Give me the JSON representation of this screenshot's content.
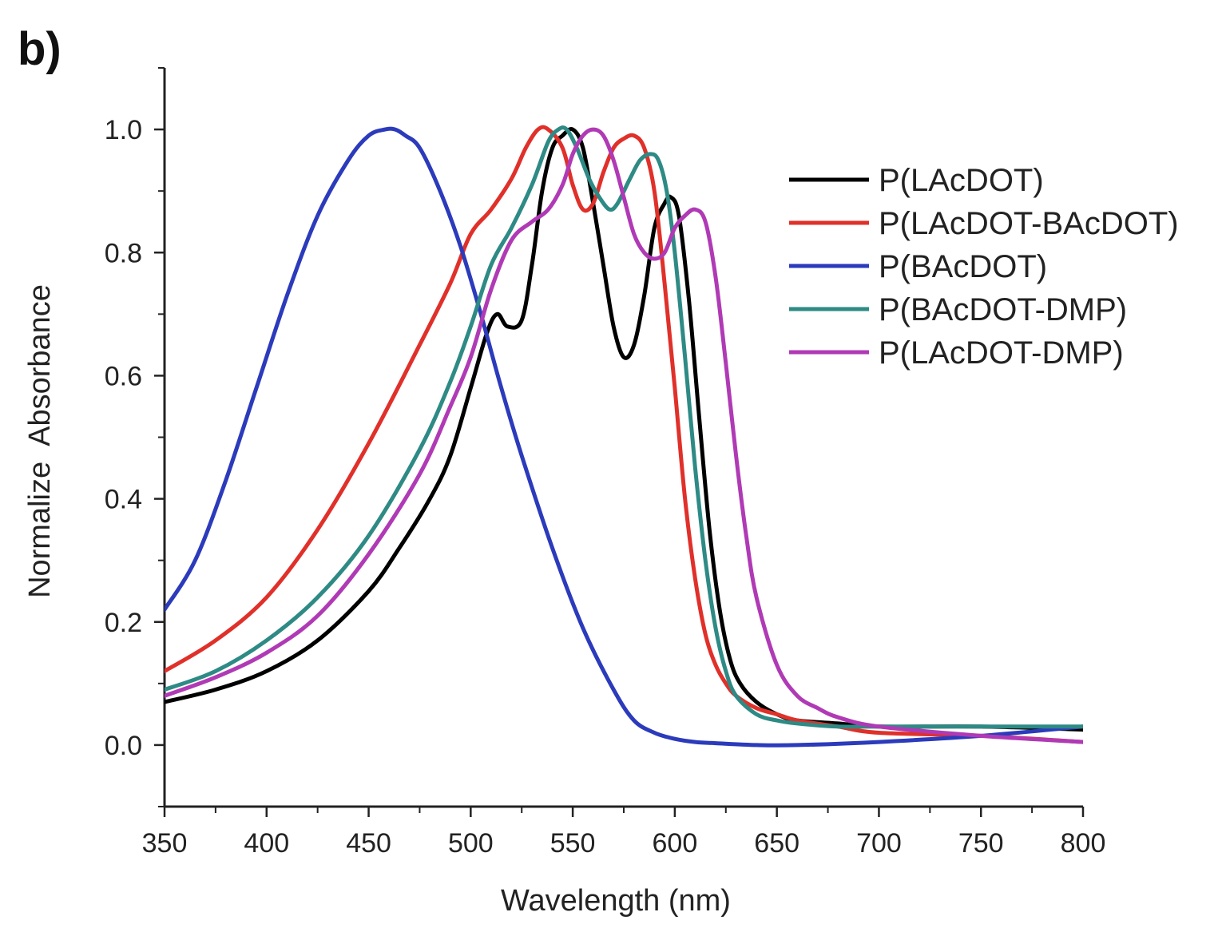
{
  "panel_label": "b)",
  "chart_data": {
    "type": "line",
    "title": "",
    "xlabel": "Wavelength (nm)",
    "ylabel": "Normalize  Absorbance",
    "xlim": [
      350,
      800
    ],
    "ylim": [
      -0.1,
      1.1
    ],
    "xticks": [
      350,
      400,
      450,
      500,
      550,
      600,
      650,
      700,
      750,
      800
    ],
    "yticks": [
      0.0,
      0.2,
      0.4,
      0.6,
      0.8,
      1.0
    ],
    "ytick_labels": [
      "0.0",
      "0.2",
      "0.4",
      "0.6",
      "0.8",
      "1.0"
    ],
    "grid": false,
    "legend_position": "top-right",
    "series": [
      {
        "name": "P(LAcDOT)",
        "color": "#000000",
        "x": [
          350,
          375,
          400,
          425,
          450,
          465,
          480,
          490,
          500,
          508,
          513,
          518,
          525,
          530,
          535,
          540,
          545,
          550,
          555,
          560,
          565,
          570,
          575,
          580,
          585,
          590,
          595,
          598,
          602,
          607,
          612,
          617,
          622,
          627,
          632,
          640,
          650,
          660,
          680,
          700,
          750,
          800
        ],
        "y": [
          0.07,
          0.09,
          0.12,
          0.17,
          0.25,
          0.32,
          0.4,
          0.47,
          0.58,
          0.67,
          0.7,
          0.68,
          0.69,
          0.78,
          0.9,
          0.97,
          0.99,
          1.0,
          0.97,
          0.88,
          0.78,
          0.68,
          0.63,
          0.65,
          0.73,
          0.84,
          0.88,
          0.89,
          0.86,
          0.72,
          0.53,
          0.35,
          0.22,
          0.14,
          0.1,
          0.07,
          0.05,
          0.04,
          0.035,
          0.03,
          0.03,
          0.025
        ]
      },
      {
        "name": "P(LAcDOT-BAcDOT)",
        "color": "#e0302a",
        "x": [
          350,
          375,
          400,
          425,
          450,
          475,
          490,
          500,
          510,
          520,
          527,
          533,
          538,
          545,
          550,
          555,
          560,
          565,
          570,
          575,
          580,
          585,
          590,
          595,
          600,
          605,
          610,
          615,
          620,
          625,
          630,
          640,
          650,
          660,
          680,
          700,
          750,
          800
        ],
        "y": [
          0.12,
          0.17,
          0.24,
          0.35,
          0.49,
          0.65,
          0.75,
          0.83,
          0.87,
          0.92,
          0.97,
          1.0,
          1.0,
          0.97,
          0.91,
          0.87,
          0.88,
          0.93,
          0.97,
          0.985,
          0.99,
          0.97,
          0.9,
          0.75,
          0.58,
          0.4,
          0.27,
          0.18,
          0.13,
          0.1,
          0.08,
          0.06,
          0.05,
          0.04,
          0.03,
          0.02,
          0.015,
          0.005
        ]
      },
      {
        "name": "P(BAcDOT)",
        "color": "#2b3bbb",
        "x": [
          350,
          365,
          380,
          395,
          410,
          425,
          440,
          450,
          458,
          463,
          468,
          475,
          485,
          495,
          505,
          515,
          525,
          540,
          555,
          570,
          580,
          590,
          600,
          610,
          620,
          640,
          660,
          700,
          750,
          800
        ],
        "y": [
          0.22,
          0.3,
          0.43,
          0.58,
          0.73,
          0.86,
          0.95,
          0.99,
          1.0,
          1.0,
          0.99,
          0.97,
          0.9,
          0.81,
          0.7,
          0.58,
          0.47,
          0.32,
          0.19,
          0.09,
          0.04,
          0.02,
          0.01,
          0.005,
          0.003,
          0.0,
          0.0,
          0.005,
          0.015,
          0.03
        ]
      },
      {
        "name": "P(BAcDOT-DMP)",
        "color": "#2e8a85",
        "x": [
          350,
          375,
          400,
          425,
          450,
          475,
          490,
          500,
          510,
          520,
          530,
          538,
          543,
          547,
          552,
          558,
          563,
          568,
          572,
          578,
          583,
          588,
          592,
          596,
          600,
          605,
          610,
          615,
          620,
          625,
          630,
          640,
          650,
          660,
          680,
          700,
          750,
          800
        ],
        "y": [
          0.09,
          0.12,
          0.17,
          0.24,
          0.34,
          0.48,
          0.59,
          0.68,
          0.78,
          0.84,
          0.91,
          0.98,
          1.0,
          1.0,
          0.97,
          0.92,
          0.89,
          0.87,
          0.88,
          0.92,
          0.95,
          0.96,
          0.95,
          0.9,
          0.8,
          0.63,
          0.45,
          0.3,
          0.19,
          0.12,
          0.08,
          0.05,
          0.04,
          0.035,
          0.03,
          0.03,
          0.03,
          0.03
        ]
      },
      {
        "name": "P(LAcDOT-DMP)",
        "color": "#b03ab5",
        "x": [
          350,
          375,
          400,
          425,
          450,
          475,
          490,
          500,
          510,
          520,
          530,
          538,
          545,
          550,
          555,
          560,
          565,
          570,
          575,
          580,
          585,
          590,
          595,
          600,
          605,
          610,
          615,
          620,
          625,
          630,
          635,
          640,
          650,
          660,
          670,
          680,
          700,
          750,
          800
        ],
        "y": [
          0.08,
          0.11,
          0.15,
          0.21,
          0.31,
          0.44,
          0.55,
          0.63,
          0.74,
          0.82,
          0.85,
          0.87,
          0.91,
          0.96,
          0.99,
          1.0,
          0.99,
          0.95,
          0.89,
          0.83,
          0.8,
          0.79,
          0.8,
          0.84,
          0.86,
          0.87,
          0.85,
          0.76,
          0.62,
          0.47,
          0.34,
          0.24,
          0.13,
          0.08,
          0.06,
          0.045,
          0.03,
          0.015,
          0.005
        ]
      }
    ]
  }
}
